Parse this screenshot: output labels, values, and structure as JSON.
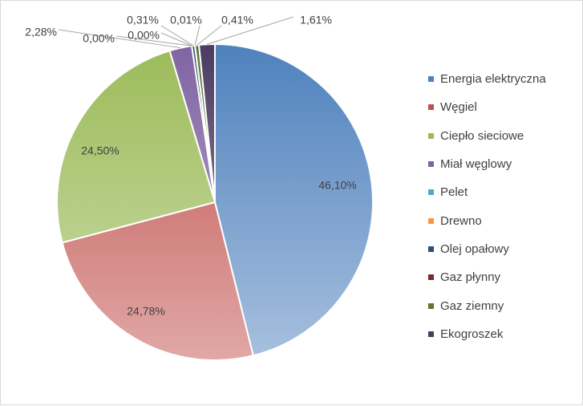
{
  "chart_data": {
    "type": "pie",
    "title": "",
    "legend_position": "right",
    "slices": [
      {
        "name": "Energia elektryczna",
        "value": 46.1,
        "label": "46,10%",
        "color": "#4f81bd"
      },
      {
        "name": "Węgiel",
        "value": 24.78,
        "label": "24,78%",
        "color": "#c0504d"
      },
      {
        "name": "Ciepło sieciowe",
        "value": 24.5,
        "label": "24,50%",
        "color": "#9bbb59"
      },
      {
        "name": "Miał węglowy",
        "value": 2.28,
        "label": "2,28%",
        "color": "#8064a2"
      },
      {
        "name": "Pelet",
        "value": 0.0,
        "label": "0,00%",
        "color": "#4bacc6"
      },
      {
        "name": "Drewno",
        "value": 0.0,
        "label": "0,00%",
        "color": "#f79646"
      },
      {
        "name": "Olej opałowy",
        "value": 0.31,
        "label": "0,31%",
        "color": "#2c4d75"
      },
      {
        "name": "Gaz płynny",
        "value": 0.01,
        "label": "0,01%",
        "color": "#772c2a"
      },
      {
        "name": "Gaz ziemny",
        "value": 0.41,
        "label": "0,41%",
        "color": "#5f7530"
      },
      {
        "name": "Ekogroszek",
        "value": 1.61,
        "label": "1,61%",
        "color": "#4d3b62"
      }
    ]
  }
}
